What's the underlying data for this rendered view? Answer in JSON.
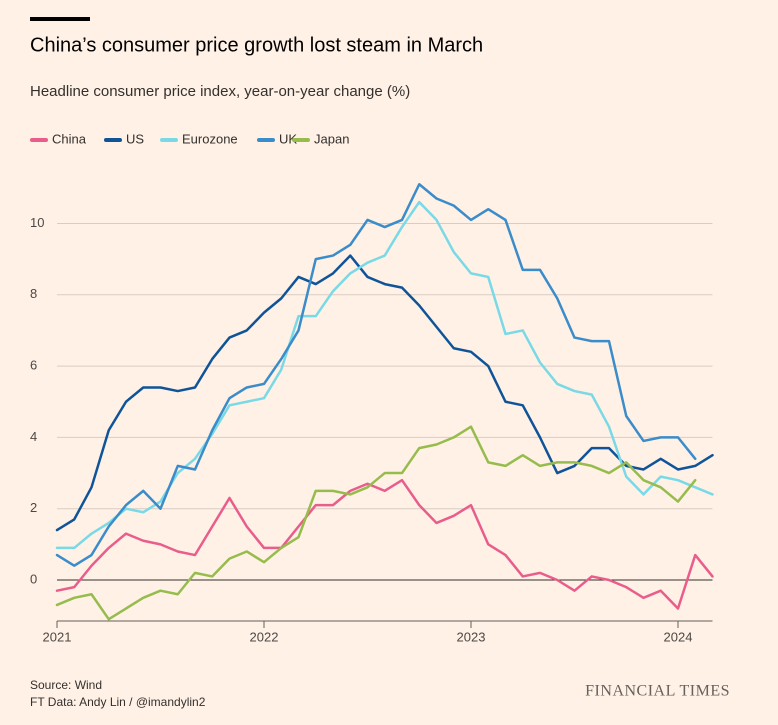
{
  "chart_data": {
    "type": "line",
    "title": "China’s consumer price growth lost steam in March",
    "subtitle": "Headline consumer price index, year-on-year change (%)",
    "source": "Source: Wind",
    "credit": "FT Data: Andy Lin / @imandylin2",
    "brand": "FINANCIAL TIMES",
    "categories": [
      "2021",
      null,
      null,
      null,
      null,
      null,
      null,
      null,
      null,
      null,
      null,
      null,
      "2022",
      null,
      null,
      null,
      null,
      null,
      null,
      null,
      null,
      null,
      null,
      null,
      "2023",
      null,
      null,
      null,
      null,
      null,
      null,
      null,
      null,
      null,
      null,
      null,
      "2024",
      null,
      null
    ],
    "ylim": [
      -1.15,
      11.5
    ],
    "yticks": [
      0,
      2,
      4,
      6,
      8,
      10
    ],
    "grid": true,
    "legend": "top-left",
    "series": [
      {
        "name": "China",
        "color": "#e95d8c",
        "values": [
          -0.3,
          -0.2,
          0.4,
          0.9,
          1.3,
          1.1,
          1.0,
          0.8,
          0.7,
          1.5,
          2.3,
          1.5,
          0.9,
          0.9,
          1.5,
          2.1,
          2.1,
          2.5,
          2.7,
          2.5,
          2.8,
          2.1,
          1.6,
          1.8,
          2.1,
          1.0,
          0.7,
          0.1,
          0.2,
          0.0,
          -0.3,
          0.1,
          0.0,
          -0.2,
          -0.5,
          -0.3,
          -0.8,
          0.7,
          0.1
        ]
      },
      {
        "name": "US",
        "color": "#0f5499",
        "values": [
          1.4,
          1.7,
          2.6,
          4.2,
          5.0,
          5.4,
          5.4,
          5.3,
          5.4,
          6.2,
          6.8,
          7.0,
          7.5,
          7.9,
          8.5,
          8.3,
          8.6,
          9.1,
          8.5,
          8.3,
          8.2,
          7.7,
          7.1,
          6.5,
          6.4,
          6.0,
          5.0,
          4.9,
          4.0,
          3.0,
          3.2,
          3.7,
          3.7,
          3.2,
          3.1,
          3.4,
          3.1,
          3.2,
          3.5
        ]
      },
      {
        "name": "Eurozone",
        "color": "#7ad9e6",
        "values": [
          0.9,
          0.9,
          1.3,
          1.6,
          2.0,
          1.9,
          2.2,
          3.0,
          3.4,
          4.1,
          4.9,
          5.0,
          5.1,
          5.9,
          7.4,
          7.4,
          8.1,
          8.6,
          8.9,
          9.1,
          9.9,
          10.6,
          10.1,
          9.2,
          8.6,
          8.5,
          6.9,
          7.0,
          6.1,
          5.5,
          5.3,
          5.2,
          4.3,
          2.9,
          2.4,
          2.9,
          2.8,
          2.6,
          2.4
        ]
      },
      {
        "name": "UK",
        "color": "#3a8cca",
        "values": [
          0.7,
          0.4,
          0.7,
          1.5,
          2.1,
          2.5,
          2.0,
          3.2,
          3.1,
          4.2,
          5.1,
          5.4,
          5.5,
          6.2,
          7.0,
          9.0,
          9.1,
          9.4,
          10.1,
          9.9,
          10.1,
          11.1,
          10.7,
          10.5,
          10.1,
          10.4,
          10.1,
          8.7,
          8.7,
          7.9,
          6.8,
          6.7,
          6.7,
          4.6,
          3.9,
          4.0,
          4.0,
          3.4,
          null
        ]
      },
      {
        "name": "Japan",
        "color": "#96bc4e",
        "values": [
          -0.7,
          -0.5,
          -0.4,
          -1.1,
          -0.8,
          -0.5,
          -0.3,
          -0.4,
          0.2,
          0.1,
          0.6,
          0.8,
          0.5,
          0.9,
          1.2,
          2.5,
          2.5,
          2.4,
          2.6,
          3.0,
          3.0,
          3.7,
          3.8,
          4.0,
          4.3,
          3.3,
          3.2,
          3.5,
          3.2,
          3.3,
          3.3,
          3.2,
          3.0,
          3.3,
          2.8,
          2.6,
          2.2,
          2.8,
          null
        ]
      }
    ]
  }
}
